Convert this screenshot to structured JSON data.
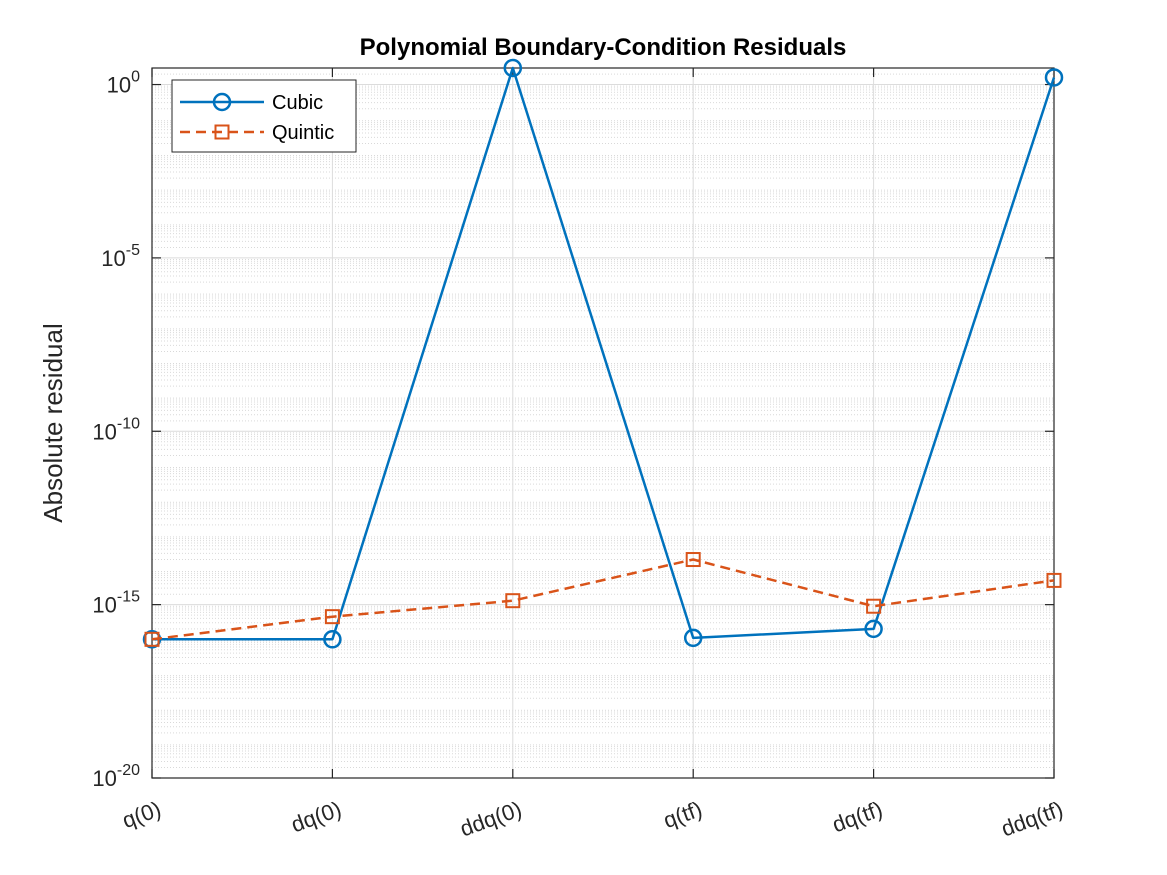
{
  "chart_data": {
    "type": "line",
    "title": "Polynomial Boundary-Condition Residuals",
    "xlabel": "",
    "ylabel": "Absolute residual",
    "yscale": "log",
    "ylim": [
      1e-20,
      3
    ],
    "grid": true,
    "minor_grid_y": true,
    "legend_position": "top-left",
    "categories": [
      "q(0)",
      "dq(0)",
      "ddq(0)",
      "q(tf)",
      "dq(tf)",
      "ddq(tf)"
    ],
    "yticks": [
      1e-20,
      1e-15,
      1e-10,
      1e-05,
      1
    ],
    "ytick_labels": [
      {
        "base": "10",
        "exp": "-20"
      },
      {
        "base": "10",
        "exp": "-15"
      },
      {
        "base": "10",
        "exp": "-10"
      },
      {
        "base": "10",
        "exp": "-5"
      },
      {
        "base": "10",
        "exp": "0"
      }
    ],
    "series": [
      {
        "name": "Cubic",
        "color": "#0072BD",
        "line_style": "solid",
        "marker": "circle",
        "values": [
          1e-16,
          1e-16,
          3,
          1.1e-16,
          2e-16,
          1.6
        ]
      },
      {
        "name": "Quintic",
        "color": "#D95319",
        "line_style": "dashed",
        "marker": "square",
        "values": [
          1e-16,
          4.5e-16,
          1.3e-15,
          2e-14,
          9e-16,
          5e-15
        ]
      }
    ]
  }
}
